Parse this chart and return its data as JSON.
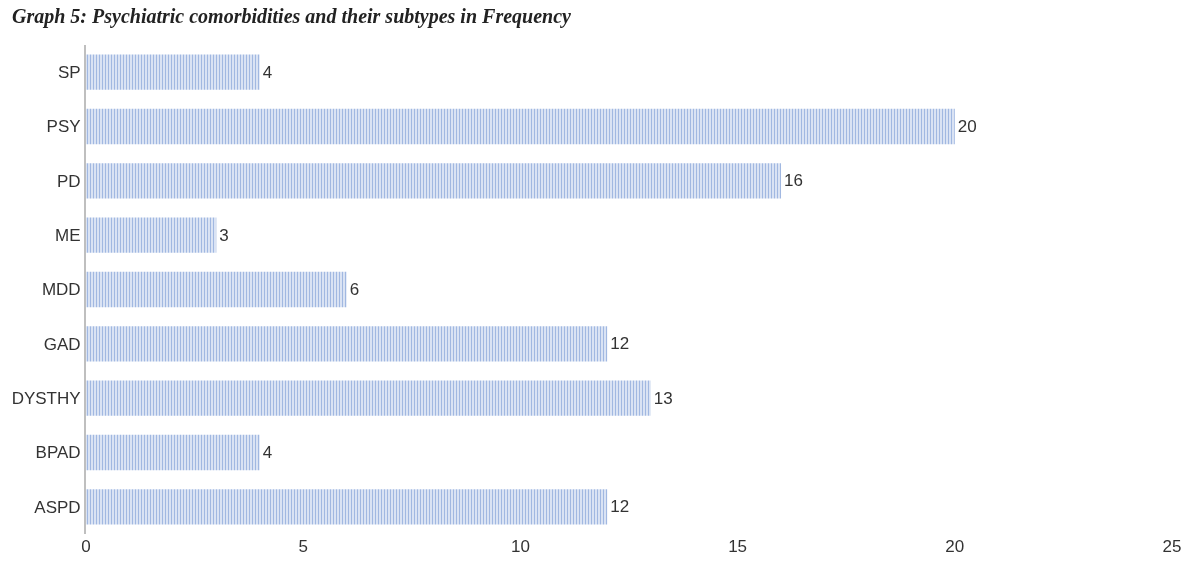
{
  "chart_data": {
    "type": "bar",
    "orientation": "horizontal",
    "title": "Graph 5: Psychiatric comorbidities and their subtypes in Frequency",
    "categories": [
      "SP",
      "PSY",
      "PD",
      "ME",
      "MDD",
      "GAD",
      "DYSTHY",
      "BPAD",
      "ASPD"
    ],
    "values": [
      4,
      20,
      16,
      3,
      6,
      12,
      13,
      4,
      12
    ],
    "color": "#4472c4",
    "xlim": [
      0,
      25
    ],
    "xticks": [
      0,
      5,
      10,
      15,
      20,
      25
    ],
    "data_labels": true
  }
}
